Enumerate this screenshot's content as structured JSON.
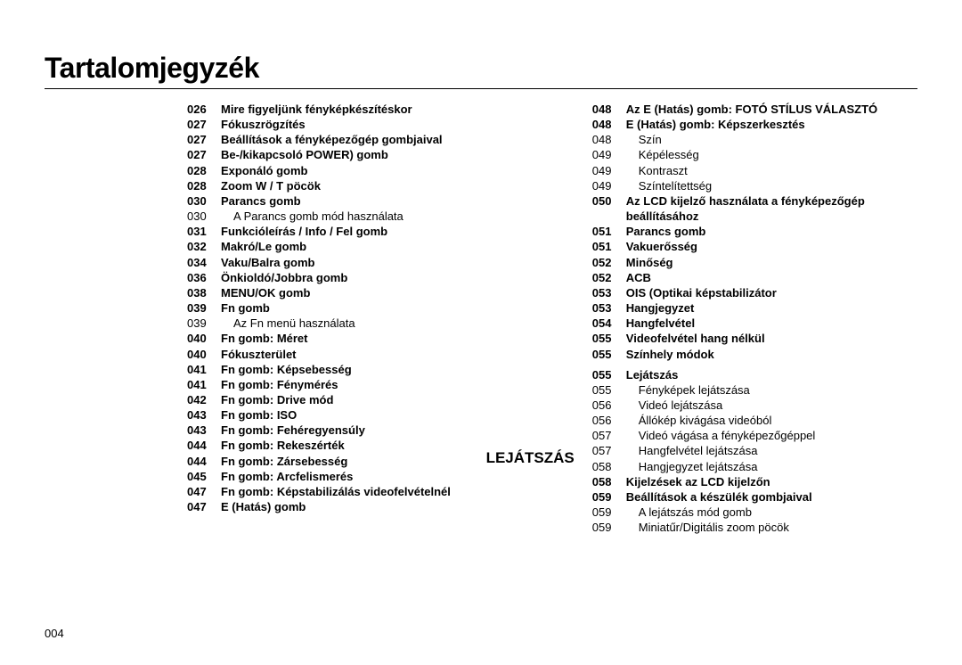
{
  "title": "Tartalomjegyzék",
  "page_number": "004",
  "section_label_right": "LEJÁTSZÁS",
  "left_entries": [
    {
      "num": "026",
      "txt": "Mire figyeljünk fényképkészítéskor",
      "bold": true
    },
    {
      "num": "027",
      "txt": "Fókuszrögzítés",
      "bold": true
    },
    {
      "num": "027",
      "txt": "Beállítások a fényképezőgép gombjaival",
      "bold": true
    },
    {
      "num": "027",
      "txt": "Be-/kikapcsoló POWER) gomb",
      "bold": true
    },
    {
      "num": "028",
      "txt": "Exponáló gomb",
      "bold": true
    },
    {
      "num": "028",
      "txt": "Zoom W / T pöcök",
      "bold": true
    },
    {
      "num": "030",
      "txt": "Parancs gomb",
      "bold": true
    },
    {
      "num": "030",
      "txt": "A Parancs gomb mód használata",
      "sub": true
    },
    {
      "num": "031",
      "txt": "Funkcióleírás / Info  / Fel gomb",
      "bold": true
    },
    {
      "num": "032",
      "txt": "Makró/Le gomb",
      "bold": true
    },
    {
      "num": "034",
      "txt": "Vaku/Balra gomb",
      "bold": true
    },
    {
      "num": "036",
      "txt": "Önkioldó/Jobbra gomb",
      "bold": true
    },
    {
      "num": "038",
      "txt": "MENU/OK gomb",
      "bold": true
    },
    {
      "num": "039",
      "txt": "Fn gomb",
      "bold": true
    },
    {
      "num": "039",
      "txt": "Az Fn menü használata",
      "sub": true
    },
    {
      "num": "040",
      "txt": "Fn gomb: Méret",
      "bold": true
    },
    {
      "num": "040",
      "txt": "Fókuszterület",
      "bold": true
    },
    {
      "num": "041",
      "txt": "Fn gomb: Képsebesség",
      "bold": true
    },
    {
      "num": "041",
      "txt": "Fn gomb: Fénymérés",
      "bold": true
    },
    {
      "num": "042",
      "txt": "Fn gomb: Drive mód",
      "bold": true
    },
    {
      "num": "043",
      "txt": "Fn gomb: ISO",
      "bold": true
    },
    {
      "num": "043",
      "txt": "Fn gomb: Fehéregyensúly",
      "bold": true
    },
    {
      "num": "044",
      "txt": "Fn gomb: Rekeszérték",
      "bold": true
    },
    {
      "num": "044",
      "txt": "Fn gomb: Zársebesség",
      "bold": true
    },
    {
      "num": "045",
      "txt": "Fn gomb: Arcfelismerés",
      "bold": true
    },
    {
      "num": "047",
      "txt": "Fn gomb: Képstabilizálás videofelvételnél",
      "bold": true
    },
    {
      "num": "047",
      "txt": "E (Hatás) gomb",
      "bold": true
    }
  ],
  "right_entries": [
    {
      "num": "048",
      "txt": "Az E (Hatás) gomb: FOTÓ STÍLUS VÁLASZTÓ",
      "bold": true
    },
    {
      "num": "048",
      "txt": "E (Hatás) gomb: Képszerkesztés",
      "bold": true
    },
    {
      "num": "048",
      "txt": "Szín",
      "sub": true
    },
    {
      "num": "049",
      "txt": "Képélesség",
      "sub": true
    },
    {
      "num": "049",
      "txt": "Kontraszt",
      "sub": true
    },
    {
      "num": "049",
      "txt": "Színtelítettség",
      "sub": true
    },
    {
      "num": "050",
      "txt": "Az LCD kijelző használata a fényképezőgép beállításához",
      "bold": true
    },
    {
      "num": "051",
      "txt": "Parancs gomb",
      "bold": true
    },
    {
      "num": "051",
      "txt": "Vakuerősség",
      "bold": true
    },
    {
      "num": "052",
      "txt": "Minőség",
      "bold": true
    },
    {
      "num": "052",
      "txt": "ACB",
      "bold": true
    },
    {
      "num": "053",
      "txt": "OIS (Optikai képstabilizátor",
      "bold": true
    },
    {
      "num": "053",
      "txt": "Hangjegyzet",
      "bold": true
    },
    {
      "num": "054",
      "txt": "Hangfelvétel",
      "bold": true
    },
    {
      "num": "055",
      "txt": "Videofelvétel hang nélkül",
      "bold": true
    },
    {
      "num": "055",
      "txt": "Színhely módok",
      "bold": true
    },
    {
      "gap": true
    },
    {
      "num": "055",
      "txt": "Lejátszás",
      "bold": true
    },
    {
      "num": "055",
      "txt": "Fényképek lejátszása",
      "sub": true
    },
    {
      "num": "056",
      "txt": "Videó lejátszása",
      "sub": true
    },
    {
      "num": "056",
      "txt": "Állókép kivágása videóból",
      "sub": true
    },
    {
      "num": "057",
      "txt": "Videó vágása a fényképezőgéppel",
      "sub": true
    },
    {
      "num": "057",
      "txt": "Hangfelvétel lejátszása",
      "sub": true
    },
    {
      "num": "058",
      "txt": "Hangjegyzet lejátszása",
      "sub": true
    },
    {
      "num": "058",
      "txt": "Kijelzések az LCD kijelzőn",
      "bold": true
    },
    {
      "num": "059",
      "txt": "Beállítások a készülék gombjaival",
      "bold": true
    },
    {
      "num": "059",
      "txt": "A lejátszás mód gomb",
      "sub": true
    },
    {
      "num": "059",
      "txt": "Miniatűr/Digitális zoom pöcök",
      "sub": true
    }
  ]
}
